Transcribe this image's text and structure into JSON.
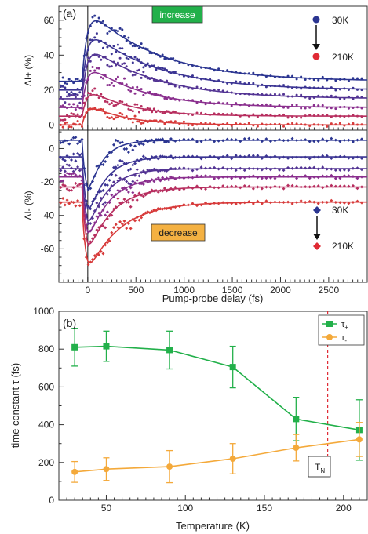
{
  "panel_a": {
    "label": "(a)",
    "xlabel": "Pump-probe delay (fs)",
    "x_ticks": [
      0,
      500,
      1000,
      1500,
      2000,
      2500
    ],
    "xlim": [
      -300,
      2900
    ],
    "top": {
      "ylabel": "ΔI+ (%)",
      "ylim": [
        -3,
        68
      ],
      "y_ticks": [
        0,
        20,
        40,
        60
      ],
      "annotation": "increase",
      "annotation_color": "#22b04a",
      "legend": {
        "start": "30K",
        "end": "210K",
        "marker": "circle"
      },
      "series": [
        {
          "offset": 25,
          "amp": 42,
          "tr": 55,
          "td": 720,
          "color": "#2b3591"
        },
        {
          "offset": 20,
          "amp": 35,
          "tr": 55,
          "td": 700,
          "color": "#3b3493"
        },
        {
          "offset": 15,
          "amp": 31,
          "tr": 55,
          "td": 680,
          "color": "#523393"
        },
        {
          "offset": 10,
          "amp": 25,
          "tr": 55,
          "td": 560,
          "color": "#8a2f8e"
        },
        {
          "offset": 5,
          "amp": 16,
          "tr": 55,
          "td": 430,
          "color": "#b72e5f"
        },
        {
          "offset": 0,
          "amp": 12,
          "tr": 55,
          "td": 380,
          "color": "#d73a3a"
        }
      ]
    },
    "bottom": {
      "ylabel": "ΔI- (%)",
      "ylim": [
        -80,
        11
      ],
      "y_ticks": [
        0,
        -20,
        -40,
        -60
      ],
      "annotation": "decrease",
      "annotation_color": "#f4b142",
      "legend": {
        "start": "30K",
        "end": "210K",
        "marker": "diamond"
      },
      "series": [
        {
          "offset": 5,
          "amp": -35,
          "tr": 35,
          "td": 150,
          "color": "#2b3591"
        },
        {
          "offset": -5,
          "amp": -38,
          "tr": 35,
          "td": 180,
          "color": "#3b3493"
        },
        {
          "offset": -12,
          "amp": -38,
          "tr": 35,
          "td": 200,
          "color": "#523393"
        },
        {
          "offset": -17,
          "amp": -40,
          "tr": 35,
          "td": 220,
          "color": "#8a2f8e"
        },
        {
          "offset": -23,
          "amp": -41,
          "tr": 35,
          "td": 250,
          "color": "#b72e5f"
        },
        {
          "offset": -32,
          "amp": -43,
          "tr": 35,
          "td": 330,
          "color": "#d73a3a"
        }
      ]
    }
  },
  "chart_data": [
    {
      "type": "line",
      "title": "",
      "xlabel": "Pump-probe delay (fs)",
      "ylabel": "ΔI+ (%)",
      "xlim": [
        -300,
        2900
      ],
      "ylim": [
        -3,
        68
      ],
      "series": [
        {
          "name": "30K",
          "values_peak": 67,
          "baseline": 25
        },
        {
          "name": "210K",
          "values_peak": 12,
          "baseline": 0
        }
      ]
    },
    {
      "type": "line",
      "title": "",
      "xlabel": "Pump-probe delay (fs)",
      "ylabel": "ΔI- (%)",
      "xlim": [
        -300,
        2900
      ],
      "ylim": [
        -80,
        11
      ],
      "series": [
        {
          "name": "30K",
          "values_min": -30,
          "baseline": 5
        },
        {
          "name": "210K",
          "values_min": -75,
          "baseline": -32
        }
      ]
    },
    {
      "type": "line",
      "title": "",
      "xlabel": "Temperature (K)",
      "ylabel": "time constant τ (fs)",
      "xlim": [
        20,
        215
      ],
      "ylim": [
        0,
        1000
      ],
      "x_ticks": [
        50,
        100,
        150,
        200
      ],
      "y_ticks": [
        0,
        200,
        400,
        600,
        800,
        1000
      ],
      "legend_position": "top-right",
      "series": [
        {
          "name": "τ+",
          "color": "#22b04a",
          "marker": "square",
          "x": [
            30,
            50,
            90,
            130,
            170,
            210
          ],
          "values": [
            810,
            815,
            795,
            705,
            430,
            372
          ],
          "err": [
            100,
            80,
            100,
            110,
            115,
            160
          ]
        },
        {
          "name": "τ-",
          "color": "#f4a93a",
          "marker": "circle",
          "x": [
            30,
            50,
            90,
            130,
            170,
            210
          ],
          "values": [
            150,
            165,
            178,
            220,
            278,
            322
          ],
          "err": [
            55,
            60,
            85,
            80,
            70,
            90
          ]
        }
      ],
      "annotation": {
        "label": "TN",
        "x": 190
      }
    }
  ],
  "panel_b": {
    "label": "(b)",
    "tn_label": "T",
    "tn_sub": "N",
    "legend": [
      {
        "symbol": "τ",
        "sub": "+"
      },
      {
        "symbol": "τ",
        "sub": "-"
      }
    ]
  }
}
